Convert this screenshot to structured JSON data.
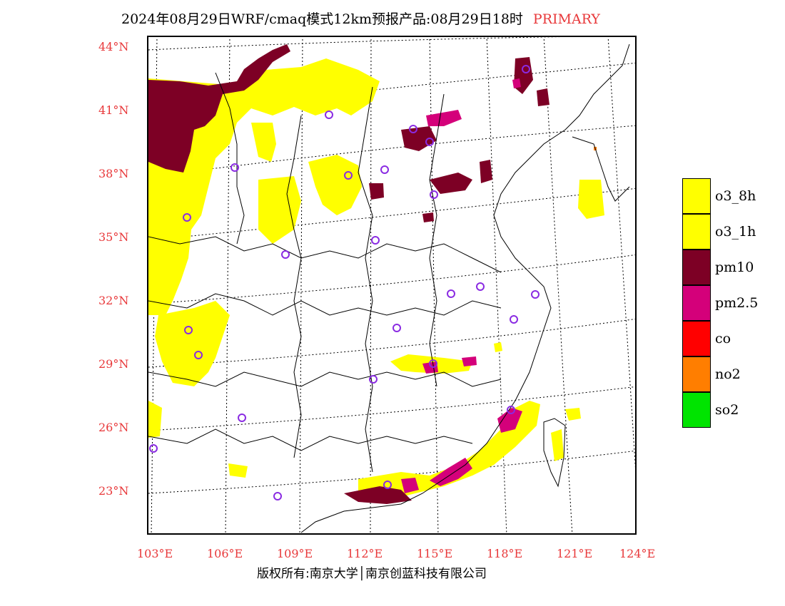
{
  "title": {
    "main": "2024年08月29日WRF/cmaq模式12km预报产品:08月29日18时",
    "mode": "PRIMARY",
    "mode_color": "#e8383a"
  },
  "axes": {
    "latitude_labels": [
      "44°N",
      "41°N",
      "38°N",
      "35°N",
      "32°N",
      "29°N",
      "26°N",
      "23°N"
    ],
    "longitude_labels": [
      "103°E",
      "106°E",
      "109°E",
      "112°E",
      "115°E",
      "118°E",
      "121°E",
      "124°E"
    ]
  },
  "legend": {
    "items": [
      {
        "label": "o3_8h",
        "color": "#ffff00"
      },
      {
        "label": "o3_1h",
        "color": "#ffff00"
      },
      {
        "label": "pm10",
        "color": "#7d0025"
      },
      {
        "label": "pm2.5",
        "color": "#d4007a"
      },
      {
        "label": "co",
        "color": "#ff0000"
      },
      {
        "label": "no2",
        "color": "#ff7e00"
      },
      {
        "label": "so2",
        "color": "#00e400"
      }
    ]
  },
  "copyright": "版权所有:南京大学│南京创蓝科技有限公司"
}
